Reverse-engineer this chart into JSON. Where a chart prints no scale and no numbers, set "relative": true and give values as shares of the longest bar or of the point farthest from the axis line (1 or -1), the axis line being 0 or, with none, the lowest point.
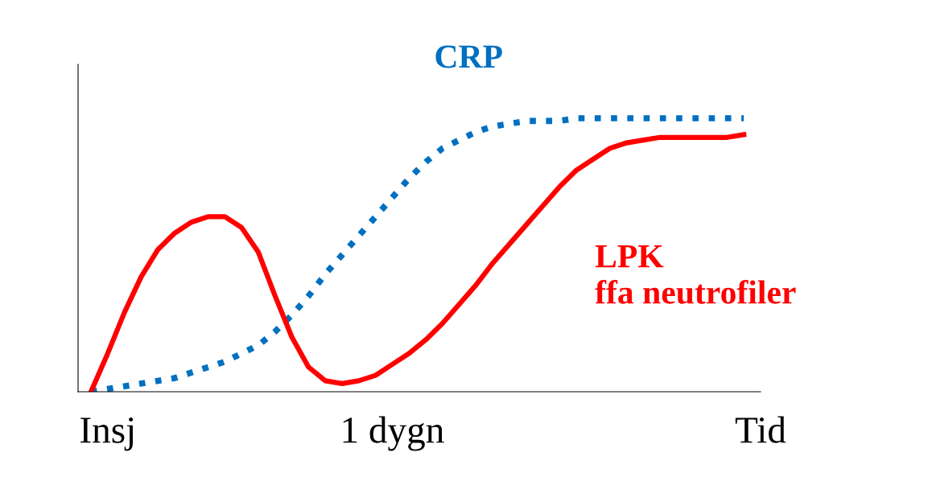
{
  "chart_data": {
    "type": "line",
    "relative": true,
    "grid": false,
    "legend": false,
    "marker": "none",
    "categories": [
      null,
      "Insj",
      null,
      null,
      null,
      null,
      null,
      null,
      null,
      null,
      null,
      null,
      null,
      null,
      null,
      null,
      null,
      null,
      "1 dygn",
      null,
      null,
      null,
      null,
      null,
      null,
      null,
      null,
      null,
      null,
      null,
      null,
      null,
      null,
      null,
      null,
      null,
      null,
      null,
      null,
      null,
      "Tid"
    ],
    "series": [
      {
        "name": "CRP",
        "color": "#0070c0",
        "line_style": "dotted",
        "values": [
          0,
          0.01,
          0.02,
          0.03,
          0.04,
          0.05,
          0.07,
          0.09,
          0.11,
          0.14,
          0.17,
          0.22,
          0.28,
          0.35,
          0.43,
          0.5,
          0.57,
          0.64,
          0.71,
          0.78,
          0.84,
          0.89,
          0.92,
          0.95,
          0.97,
          0.98,
          0.99,
          0.99,
          0.99,
          1,
          1,
          1,
          1,
          1,
          1,
          1,
          1,
          1,
          1,
          1,
          null
        ]
      },
      {
        "name": "LPK\nffa neutrofiler",
        "color": "#ff0000",
        "line_style": "solid",
        "values": [
          0,
          0.14,
          0.29,
          0.42,
          0.52,
          0.58,
          0.62,
          0.64,
          0.64,
          0.6,
          0.51,
          0.35,
          0.2,
          0.09,
          0.04,
          0.03,
          0.04,
          0.06,
          0.1,
          0.14,
          0.19,
          0.25,
          0.32,
          0.39,
          0.47,
          0.54,
          0.61,
          0.68,
          0.75,
          0.81,
          0.85,
          0.89,
          0.91,
          0.92,
          0.93,
          0.93,
          0.93,
          0.93,
          0.93,
          0.94,
          null
        ]
      }
    ]
  }
}
